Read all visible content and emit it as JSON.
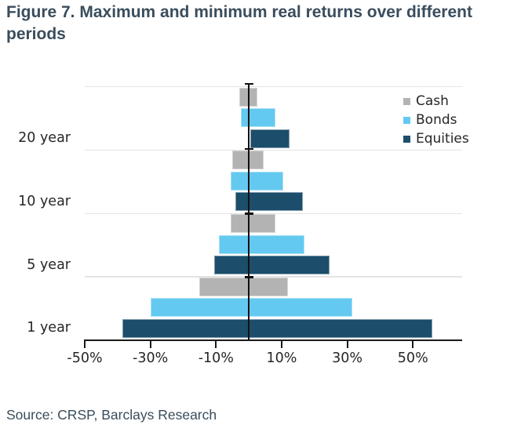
{
  "title": "Figure 7. Maximum and minimum real returns over different periods",
  "source": "Source: CRSP, Barclays Research",
  "chart_data": {
    "type": "bar",
    "orientation": "horizontal",
    "subtype": "range bars showing minimum to maximum real return per holding period",
    "title": "Figure 7. Maximum and minimum real returns over different periods",
    "xlabel": "",
    "ylabel": "",
    "categories": [
      "20 year",
      "10 year",
      "5 year",
      "1 year"
    ],
    "categories_order": "top to bottom",
    "bar_order_within_group": [
      "Cash",
      "Bonds",
      "Equities"
    ],
    "x_ticks": [
      -50,
      -30,
      -10,
      10,
      30,
      50
    ],
    "x_tick_labels": [
      "-50%",
      "-30%",
      "-10%",
      "10%",
      "30%",
      "50%"
    ],
    "xlim": [
      -50,
      65
    ],
    "grid": "horizontal separator lines between period groups",
    "zero_line": true,
    "legend_position": "upper right, no frame",
    "series": [
      {
        "name": "Cash",
        "color": "#b3b3b3",
        "ranges": [
          [
            -3,
            2.5
          ],
          [
            -5,
            4.5
          ],
          [
            -5.5,
            8
          ],
          [
            -15,
            12
          ]
        ]
      },
      {
        "name": "Bonds",
        "color": "#64c9f0",
        "ranges": [
          [
            -2.5,
            8
          ],
          [
            -5.5,
            10.5
          ],
          [
            -9,
            17
          ],
          [
            -30,
            31.5
          ]
        ]
      },
      {
        "name": "Equities",
        "color": "#1c4e6b",
        "ranges": [
          [
            0.5,
            12.5
          ],
          [
            -4,
            16.5
          ],
          [
            -10.5,
            24.5
          ],
          [
            -38.5,
            56
          ]
        ]
      }
    ],
    "ranges_unit": "percent real return, [minimum, maximum] aligned with categories",
    "colors": {
      "axis": "#1a1a1a",
      "zero_line": "#111111",
      "grid": "#e4e4e4",
      "title_text": "#3a4d5c",
      "label_text": "#262626"
    }
  }
}
